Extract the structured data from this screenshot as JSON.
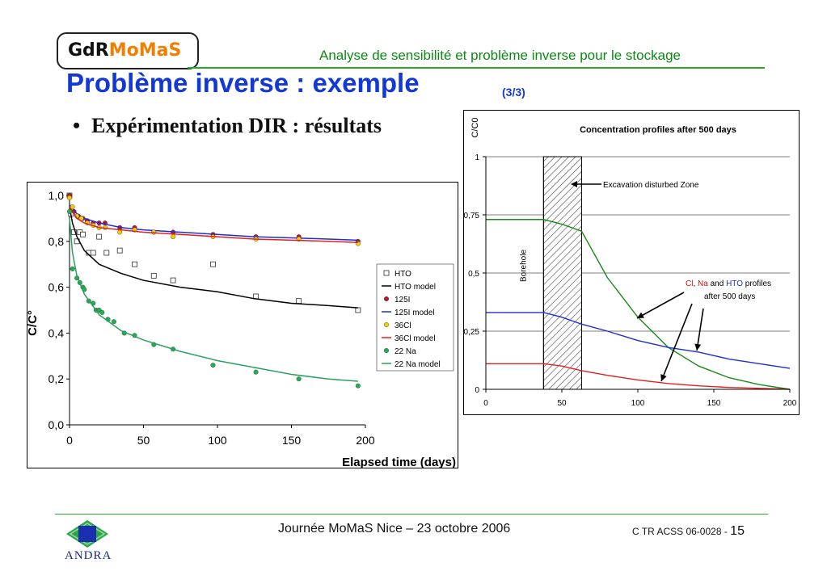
{
  "header": {
    "logo_gdr": "GdR",
    "logo_momas": "MoMaS",
    "subtitle": "Analyse de sensibilité et problème inverse pour le stockage"
  },
  "title": "Problème inverse : exemple",
  "title_part": "(3/3)",
  "bullet": "Expérimentation DIR : résultats",
  "footer": {
    "center": "Journée MoMaS Nice – 23 octobre 2006",
    "ref": "C TR ACSS 06-0028 - ",
    "page": "15",
    "org": "ANDRA"
  },
  "colors": {
    "blue_title": "#1239d6",
    "green_rule": "#2aa62a",
    "orange_logo": "#f07e00"
  },
  "chart_data": [
    {
      "type": "scatter",
      "title": "",
      "xlabel": "Elapsed time (days)",
      "ylabel": "C/C°",
      "xlim": [
        0,
        200
      ],
      "ylim": [
        0,
        1
      ],
      "xticks": [
        "0",
        "50",
        "100",
        "150",
        "200"
      ],
      "yticks": [
        "0,0",
        "0,2",
        "0,4",
        "0,6",
        "0,8",
        "1,0"
      ],
      "legend_position": "right",
      "legend": [
        "HTO",
        "HTO model",
        "125I",
        "125I model",
        "36Cl",
        "36Cl model",
        "22 Na",
        "22 Na model"
      ],
      "series": [
        {
          "name": "HTO",
          "kind": "points",
          "color": "#444444",
          "x": [
            0,
            1,
            3,
            5,
            7,
            9,
            13,
            16,
            20,
            25,
            34,
            44,
            57,
            70,
            97,
            126,
            155,
            195
          ],
          "y": [
            1.0,
            0.92,
            0.84,
            0.8,
            0.84,
            0.83,
            0.75,
            0.75,
            0.82,
            0.75,
            0.76,
            0.7,
            0.65,
            0.63,
            0.7,
            0.56,
            0.54,
            0.5
          ]
        },
        {
          "name": "HTO model",
          "kind": "line",
          "color": "#000000",
          "x": [
            0,
            2,
            5,
            10,
            20,
            35,
            50,
            75,
            100,
            125,
            150,
            175,
            195
          ],
          "y": [
            0.95,
            0.88,
            0.82,
            0.76,
            0.7,
            0.66,
            0.63,
            0.6,
            0.58,
            0.55,
            0.53,
            0.52,
            0.51
          ]
        },
        {
          "name": "125I",
          "kind": "points",
          "color": "#c8102e",
          "x": [
            0,
            3,
            6,
            9,
            12,
            16,
            20,
            24,
            34,
            44,
            57,
            70,
            97,
            126,
            155,
            195
          ],
          "y": [
            1.0,
            0.93,
            0.91,
            0.9,
            0.89,
            0.88,
            0.88,
            0.88,
            0.86,
            0.86,
            0.84,
            0.84,
            0.83,
            0.82,
            0.82,
            0.8
          ]
        },
        {
          "name": "125I model",
          "kind": "line",
          "color": "#1f2fcf",
          "x": [
            0,
            5,
            10,
            20,
            35,
            50,
            75,
            100,
            125,
            150,
            175,
            195
          ],
          "y": [
            0.96,
            0.92,
            0.9,
            0.88,
            0.86,
            0.85,
            0.84,
            0.83,
            0.82,
            0.815,
            0.81,
            0.805
          ]
        },
        {
          "name": "36Cl",
          "kind": "points",
          "color": "#f0d000",
          "x": [
            0,
            2,
            5,
            8,
            12,
            16,
            20,
            24,
            34,
            44,
            57,
            70,
            97,
            126,
            155,
            195
          ],
          "y": [
            0.99,
            0.95,
            0.91,
            0.9,
            0.88,
            0.87,
            0.86,
            0.86,
            0.84,
            0.85,
            0.84,
            0.82,
            0.82,
            0.81,
            0.81,
            0.79
          ]
        },
        {
          "name": "36Cl model",
          "kind": "line",
          "color": "#e02020",
          "x": [
            0,
            5,
            10,
            20,
            35,
            50,
            75,
            100,
            125,
            150,
            175,
            195
          ],
          "y": [
            0.95,
            0.9,
            0.88,
            0.86,
            0.85,
            0.84,
            0.83,
            0.82,
            0.81,
            0.805,
            0.8,
            0.795
          ]
        },
        {
          "name": "22 Na",
          "kind": "points",
          "color": "#20b050",
          "x": [
            0,
            2,
            5,
            7,
            9,
            10,
            13,
            16,
            18,
            20,
            22,
            26,
            30,
            37,
            44,
            57,
            70,
            97,
            126,
            155,
            195
          ],
          "y": [
            0.93,
            0.68,
            0.64,
            0.62,
            0.6,
            0.59,
            0.54,
            0.53,
            0.5,
            0.5,
            0.49,
            0.46,
            0.45,
            0.4,
            0.39,
            0.35,
            0.33,
            0.26,
            0.23,
            0.2,
            0.17
          ]
        },
        {
          "name": "22 Na model",
          "kind": "line",
          "color": "#2aa060",
          "x": [
            0,
            2,
            5,
            10,
            20,
            35,
            50,
            75,
            100,
            125,
            150,
            175,
            195
          ],
          "y": [
            0.9,
            0.75,
            0.65,
            0.57,
            0.48,
            0.41,
            0.37,
            0.32,
            0.28,
            0.25,
            0.22,
            0.2,
            0.19
          ]
        }
      ]
    },
    {
      "type": "line",
      "title": "Concentration profiles after 500 days",
      "xlabel": "",
      "ylabel": "C/C0",
      "xlim": [
        0,
        200
      ],
      "ylim": [
        0,
        1
      ],
      "xticks": [
        "0",
        "50",
        "100",
        "150",
        "200"
      ],
      "yticks": [
        "0",
        "0,25",
        "0,5",
        "0,75",
        "1"
      ],
      "grid": "horizontal",
      "zones": [
        {
          "label": "Borehole",
          "x": [
            0,
            38
          ]
        },
        {
          "label": "",
          "x": [
            38,
            63
          ],
          "pattern": "hatch"
        }
      ],
      "annotations": [
        {
          "text": "Excavation disturbed Zone"
        },
        {
          "parts": [
            {
              "text": "Cl",
              "color": "#d01010"
            },
            {
              "text": ", ",
              "color": "#000000"
            },
            {
              "text": "Na",
              "color": "#d01010"
            },
            {
              "text": " and ",
              "color": "#000000"
            },
            {
              "text": "HTO",
              "color": "#1f2fcf"
            },
            {
              "text": " profiles",
              "color": "#000000"
            }
          ]
        },
        {
          "text": "after 500 days"
        }
      ],
      "series": [
        {
          "name": "",
          "color": "#1a8a1a",
          "x": [
            0,
            38,
            50,
            63,
            80,
            100,
            120,
            140,
            160,
            180,
            200
          ],
          "y": [
            0.73,
            0.73,
            0.71,
            0.68,
            0.48,
            0.31,
            0.18,
            0.1,
            0.05,
            0.02,
            0.0
          ]
        },
        {
          "name": "",
          "color": "#1f2fcf",
          "x": [
            0,
            38,
            50,
            63,
            80,
            100,
            120,
            140,
            160,
            180,
            200
          ],
          "y": [
            0.33,
            0.33,
            0.31,
            0.28,
            0.25,
            0.21,
            0.18,
            0.16,
            0.13,
            0.11,
            0.09
          ]
        },
        {
          "name": "",
          "color": "#e02020",
          "x": [
            0,
            38,
            50,
            63,
            80,
            100,
            120,
            140,
            160,
            180,
            200
          ],
          "y": [
            0.11,
            0.11,
            0.1,
            0.08,
            0.06,
            0.04,
            0.025,
            0.015,
            0.008,
            0.004,
            0.0
          ]
        }
      ]
    }
  ]
}
